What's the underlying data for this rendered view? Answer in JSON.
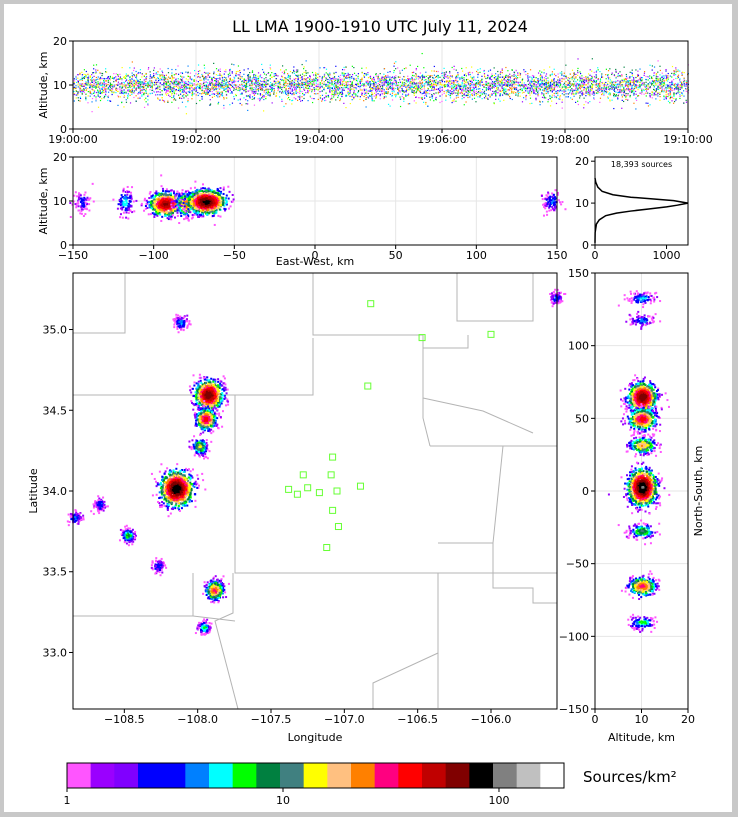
{
  "title": "LL LMA 1900-1910 UTC July 11, 2024",
  "units_label": "Sources/km²",
  "chart_data": [
    {
      "id": "time-height",
      "type": "scatter",
      "ylabel": "Altitude, km",
      "xlim": [
        "19:00:00",
        "19:10:00"
      ],
      "ylim": [
        0,
        20
      ],
      "xticks": [
        "19:00:00",
        "19:02:00",
        "19:04:00",
        "19:06:00",
        "19:08:00",
        "19:10:00"
      ],
      "yticks": [
        0,
        10,
        20
      ],
      "grid": true
    },
    {
      "id": "ew-height",
      "type": "heatmap",
      "xlabel": "East-West, km",
      "ylabel": "Altitude, km",
      "xlim": [
        -150,
        150
      ],
      "ylim": [
        0,
        20
      ],
      "xticks": [
        -150,
        -100,
        -50,
        0,
        50,
        100,
        150
      ],
      "yticks": [
        0,
        10,
        20
      ],
      "clusters": [
        {
          "x": -145,
          "z": 10,
          "density": 2
        },
        {
          "x": -118,
          "z": 10,
          "density": 5
        },
        {
          "x": -93,
          "z": 9.5,
          "density": 60
        },
        {
          "x": -80,
          "z": 9.5,
          "density": 25
        },
        {
          "x": -68,
          "z": 10,
          "density": 80
        },
        {
          "x": 146,
          "z": 10,
          "density": 3
        }
      ]
    },
    {
      "id": "altitude-histogram",
      "type": "line",
      "annotation": "18,393 sources",
      "xlim": [
        0,
        1300
      ],
      "ylim": [
        0,
        21
      ],
      "xticks": [
        0,
        1000
      ],
      "yticks": [
        0,
        10,
        20
      ],
      "points": [
        [
          0,
          0.5
        ],
        [
          2,
          3
        ],
        [
          20,
          5
        ],
        [
          60,
          6
        ],
        [
          150,
          7
        ],
        [
          300,
          7.6
        ],
        [
          500,
          8.1
        ],
        [
          750,
          8.6
        ],
        [
          1000,
          9.1
        ],
        [
          1150,
          9.5
        ],
        [
          1300,
          10
        ],
        [
          1100,
          10.6
        ],
        [
          800,
          11
        ],
        [
          500,
          11.4
        ],
        [
          250,
          12
        ],
        [
          100,
          12.8
        ],
        [
          40,
          13.8
        ],
        [
          10,
          15
        ],
        [
          0,
          16
        ]
      ]
    },
    {
      "id": "plan-view",
      "type": "heatmap",
      "xlabel": "Longitude",
      "ylabel": "Latitude",
      "xlim": [
        -108.85,
        -105.55
      ],
      "ylim": [
        32.65,
        35.35
      ],
      "xticks": [
        -108.5,
        -108.0,
        -107.5,
        -107.0,
        -106.5,
        -106.0
      ],
      "xtick_labels": [
        "−108.5",
        "−108.0",
        "−107.5",
        "−107.0",
        "−106.5",
        "−106.0"
      ],
      "yticks": [
        33.0,
        33.5,
        34.0,
        34.5,
        35.0
      ],
      "yticklabels": [
        "33.0",
        "33.5",
        "34.0",
        "34.5",
        "35.0"
      ],
      "stations": [
        [
          -106.82,
          35.16
        ],
        [
          -106.47,
          34.95
        ],
        [
          -106.0,
          34.97
        ],
        [
          -106.84,
          34.65
        ],
        [
          -107.08,
          34.21
        ],
        [
          -107.28,
          34.1
        ],
        [
          -107.09,
          34.1
        ],
        [
          -107.38,
          34.01
        ],
        [
          -107.25,
          34.02
        ],
        [
          -107.32,
          33.98
        ],
        [
          -107.17,
          33.99
        ],
        [
          -107.05,
          34.0
        ],
        [
          -106.89,
          34.03
        ],
        [
          -107.08,
          33.88
        ],
        [
          -107.04,
          33.78
        ],
        [
          -107.12,
          33.65
        ]
      ],
      "clusters": [
        {
          "lon": -108.12,
          "lat": 35.05,
          "density": 4
        },
        {
          "lon": -107.93,
          "lat": 34.6,
          "density": 70
        },
        {
          "lon": -107.95,
          "lat": 34.45,
          "density": 40
        },
        {
          "lon": -107.99,
          "lat": 34.28,
          "density": 15
        },
        {
          "lon": -108.15,
          "lat": 34.02,
          "density": 90
        },
        {
          "lon": -108.67,
          "lat": 33.92,
          "density": 3
        },
        {
          "lon": -108.48,
          "lat": 33.73,
          "density": 8
        },
        {
          "lon": -108.84,
          "lat": 33.84,
          "density": 3
        },
        {
          "lon": -108.27,
          "lat": 33.54,
          "density": 3
        },
        {
          "lon": -107.89,
          "lat": 33.39,
          "density": 30
        },
        {
          "lon": -107.96,
          "lat": 33.16,
          "density": 6
        },
        {
          "lon": -105.56,
          "lat": 35.2,
          "density": 3
        }
      ]
    },
    {
      "id": "ns-height",
      "type": "heatmap",
      "xlabel": "Altitude, km",
      "ylabel": "North-South, km",
      "xlim": [
        0,
        20
      ],
      "ylim": [
        -150,
        150
      ],
      "xticks": [
        0,
        10,
        20
      ],
      "yticks": [
        -150,
        -100,
        -50,
        0,
        50,
        100,
        150
      ],
      "clusters": [
        {
          "z": 10,
          "y": 133,
          "density": 4
        },
        {
          "z": 10,
          "y": 118,
          "density": 3
        },
        {
          "z": 10,
          "y": 65,
          "density": 70
        },
        {
          "z": 10,
          "y": 50,
          "density": 40
        },
        {
          "z": 10,
          "y": 32,
          "density": 20
        },
        {
          "z": 10,
          "y": 3,
          "density": 95
        },
        {
          "z": 10,
          "y": -27,
          "density": 10
        },
        {
          "z": 10,
          "y": -65,
          "density": 30
        },
        {
          "z": 10,
          "y": -90,
          "density": 6
        }
      ]
    }
  ],
  "colorbar": {
    "colors": [
      "#ff55ff",
      "#9a00ff",
      "#8000ff",
      "#0000ff",
      "#0000ff",
      "#0080ff",
      "#00ffff",
      "#00ff00",
      "#008040",
      "#408080",
      "#ffff00",
      "#ffc080",
      "#ff8000",
      "#ff0080",
      "#ff0000",
      "#c00000",
      "#800000",
      "#000000",
      "#808080",
      "#c0c0c0",
      "#ffffff"
    ],
    "tick_labels": [
      "1",
      "10",
      "100"
    ],
    "tick_values": [
      1,
      10,
      100
    ],
    "range": [
      1,
      200
    ]
  }
}
